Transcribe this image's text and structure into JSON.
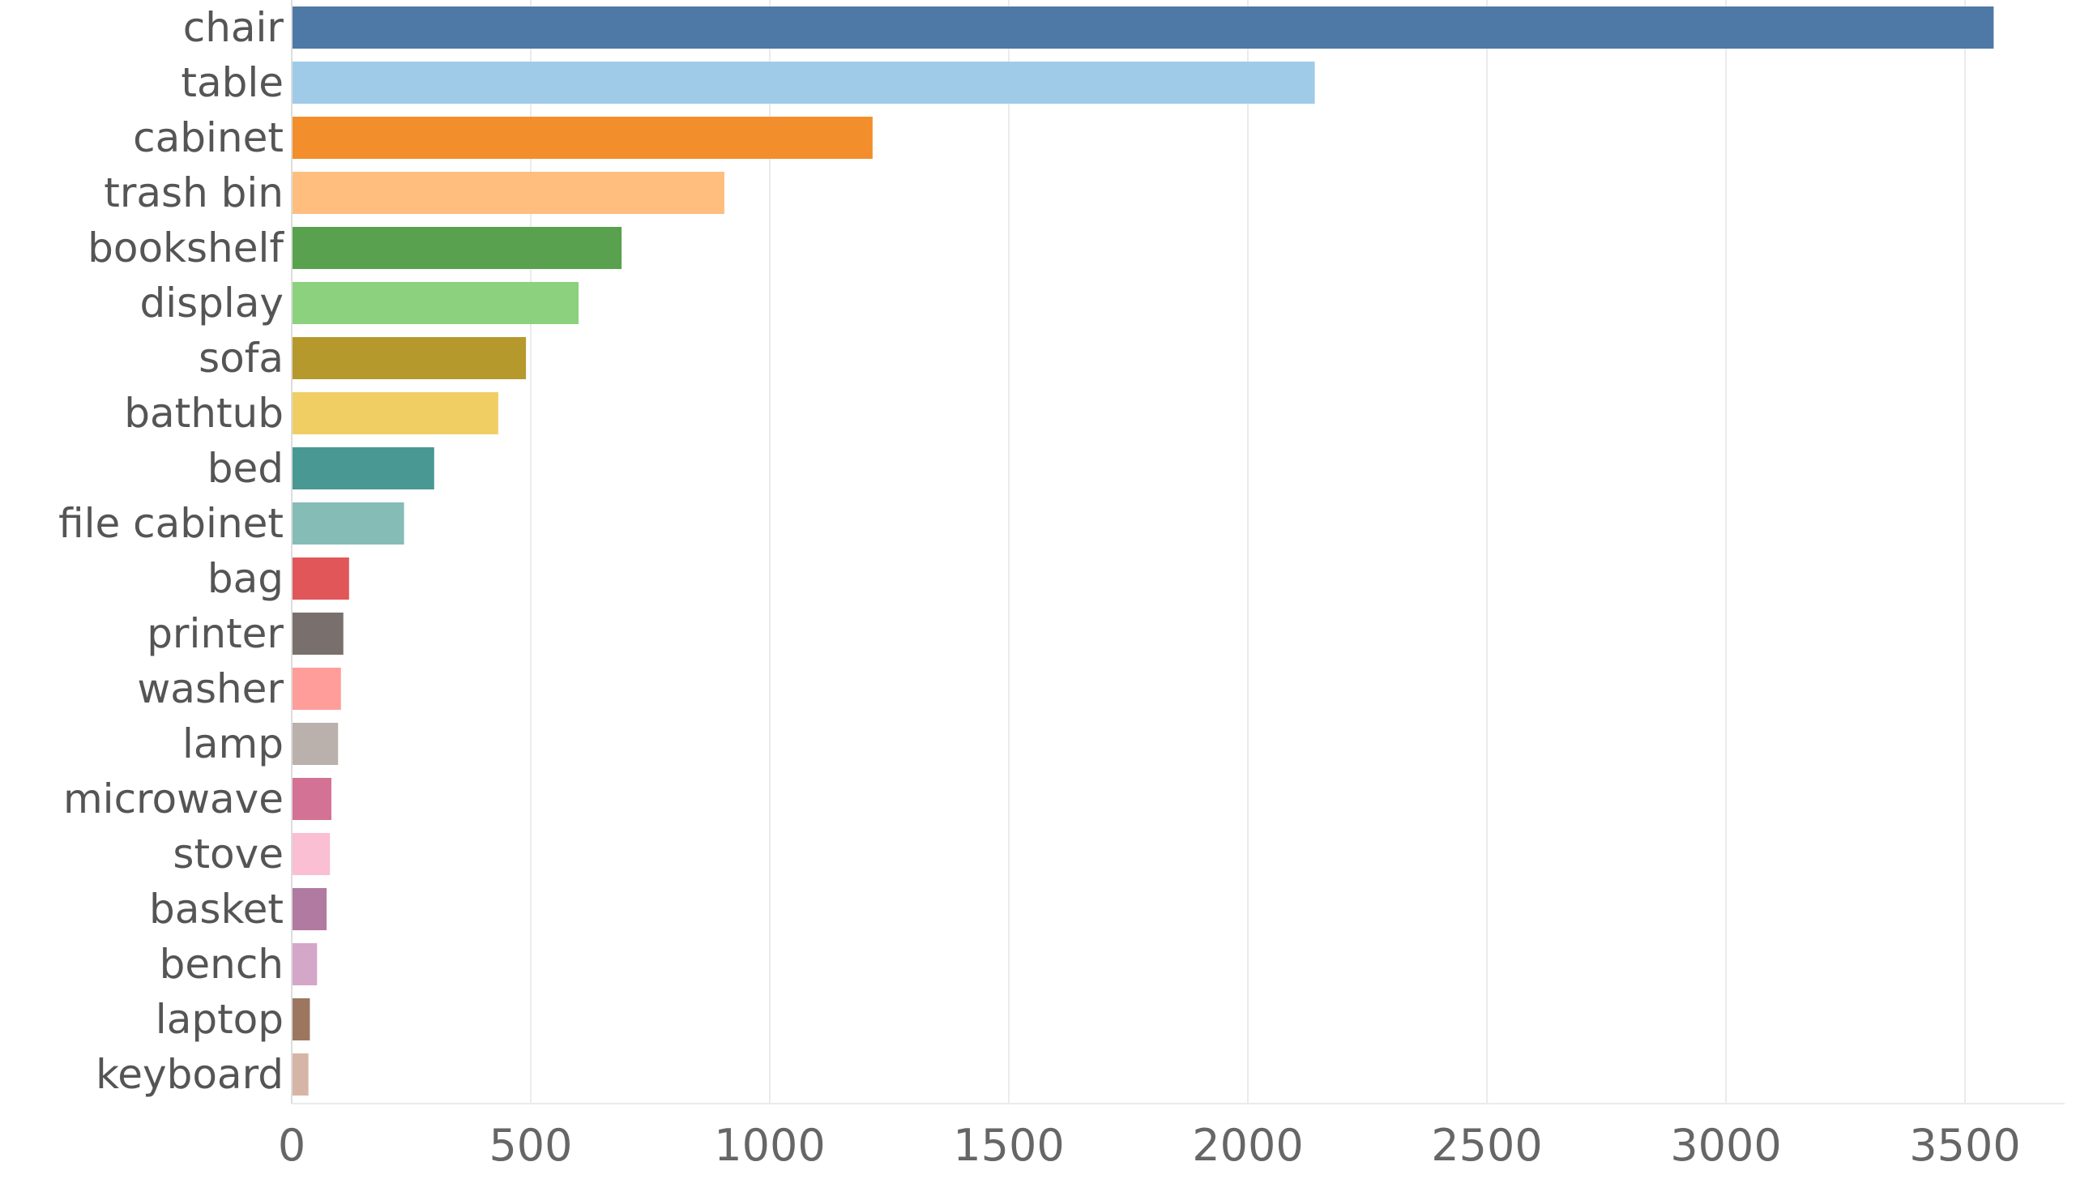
{
  "chart_data": {
    "type": "bar",
    "orientation": "horizontal",
    "title": "",
    "xlabel": "",
    "ylabel": "",
    "xlim": [
      0,
      3700
    ],
    "x_ticks": [
      0,
      500,
      1000,
      1500,
      2000,
      2500,
      3000,
      3500
    ],
    "grid": true,
    "legend": "none",
    "categories": [
      "chair",
      "table",
      "cabinet",
      "trash bin",
      "bookshelf",
      "display",
      "sofa",
      "bathtub",
      "bed",
      "file cabinet",
      "bag",
      "printer",
      "washer",
      "lamp",
      "microwave",
      "stove",
      "basket",
      "bench",
      "laptop",
      "keyboard"
    ],
    "values": [
      3560,
      2140,
      1215,
      905,
      690,
      600,
      490,
      432,
      298,
      235,
      120,
      108,
      103,
      97,
      83,
      80,
      73,
      53,
      38,
      35
    ],
    "colors": [
      "#4e79a7",
      "#a0cbe8",
      "#f28e2b",
      "#ffbe7d",
      "#59a14f",
      "#8cd17d",
      "#b6992d",
      "#f1ce63",
      "#499894",
      "#86bcb6",
      "#e15759",
      "#79706e",
      "#ff9d9a",
      "#bab0ac",
      "#d37295",
      "#fabfd2",
      "#b07aa1",
      "#d4a6c8",
      "#9d7660",
      "#d7b5a6"
    ]
  }
}
